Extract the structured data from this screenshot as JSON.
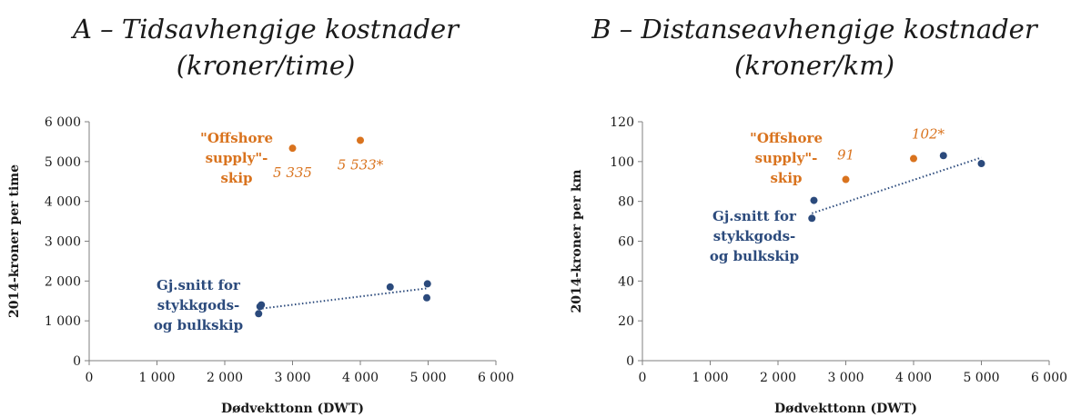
{
  "colors": {
    "navy": "#2b4a7c",
    "orange": "#d9731e",
    "axis": "#7f7f7f",
    "text": "#1a1a1a"
  },
  "chart_data": [
    {
      "type": "scatter",
      "title_lines": [
        "A – Tidsavhengige kostnader",
        "(kroner/time)"
      ],
      "xlabel": "Dødvekttonn (DWT)",
      "ylabel": "2014-kroner per time",
      "xlim": [
        0,
        6000
      ],
      "ylim": [
        0,
        6000
      ],
      "x_ticks": [
        0,
        1000,
        2000,
        3000,
        4000,
        5000,
        6000
      ],
      "x_tick_labels": [
        "0",
        "1 000",
        "2 000",
        "3 000",
        "4 000",
        "5 000",
        "6 000"
      ],
      "y_ticks": [
        0,
        1000,
        2000,
        3000,
        4000,
        5000,
        6000
      ],
      "y_tick_labels": [
        "0",
        "1 000",
        "2 000",
        "3 000",
        "4 000",
        "5 000",
        "6 000"
      ],
      "grid": false,
      "series": [
        {
          "color": "navy",
          "points": [
            {
              "x": 2500,
              "y": 1180
            },
            {
              "x": 2520,
              "y": 1360
            },
            {
              "x": 2540,
              "y": 1400
            },
            {
              "x": 4440,
              "y": 1850
            },
            {
              "x": 4980,
              "y": 1580
            },
            {
              "x": 4990,
              "y": 1930
            }
          ],
          "trendline": {
            "x": [
              2500,
              5000
            ],
            "y": [
              1300,
              1820
            ]
          },
          "group_label": [
            "Gj.snitt for",
            "stykkgods-",
            "og bulkskip"
          ]
        },
        {
          "color": "orange",
          "points": [
            {
              "x": 3000,
              "y": 5335,
              "label": "5 335"
            },
            {
              "x": 4000,
              "y": 5533,
              "label": "5 533*"
            }
          ],
          "group_label": [
            "\"Offshore",
            "supply\"-",
            "skip"
          ]
        }
      ]
    },
    {
      "type": "scatter",
      "title_lines": [
        "B – Distanseavhengige kostnader",
        "(kroner/km)"
      ],
      "xlabel": "Dødvekttonn (DWT)",
      "ylabel": "2014-kroner per km",
      "xlim": [
        0,
        6000
      ],
      "ylim": [
        0,
        120
      ],
      "x_ticks": [
        0,
        1000,
        2000,
        3000,
        4000,
        5000,
        6000
      ],
      "x_tick_labels": [
        "0",
        "1 000",
        "2 000",
        "3 000",
        "4 000",
        "5 000",
        "6 000"
      ],
      "y_ticks": [
        0,
        20,
        40,
        60,
        80,
        100,
        120
      ],
      "y_tick_labels": [
        "0",
        "20",
        "40",
        "60",
        "80",
        "100",
        "120"
      ],
      "grid": false,
      "series": [
        {
          "color": "navy",
          "points": [
            {
              "x": 2500,
              "y": 71.5
            },
            {
              "x": 2530,
              "y": 80.5
            },
            {
              "x": 4440,
              "y": 103
            },
            {
              "x": 5000,
              "y": 99
            }
          ],
          "trendline": {
            "x": [
              2500,
              5000
            ],
            "y": [
              74,
              102
            ]
          },
          "group_label": [
            "Gj.snitt for",
            "stykkgods-",
            "og bulkskip"
          ]
        },
        {
          "color": "orange",
          "points": [
            {
              "x": 3000,
              "y": 91,
              "label": "91"
            },
            {
              "x": 4000,
              "y": 101.5,
              "label": "102*"
            }
          ],
          "group_label": [
            "\"Offshore",
            "supply\"-",
            "skip"
          ]
        }
      ]
    }
  ]
}
